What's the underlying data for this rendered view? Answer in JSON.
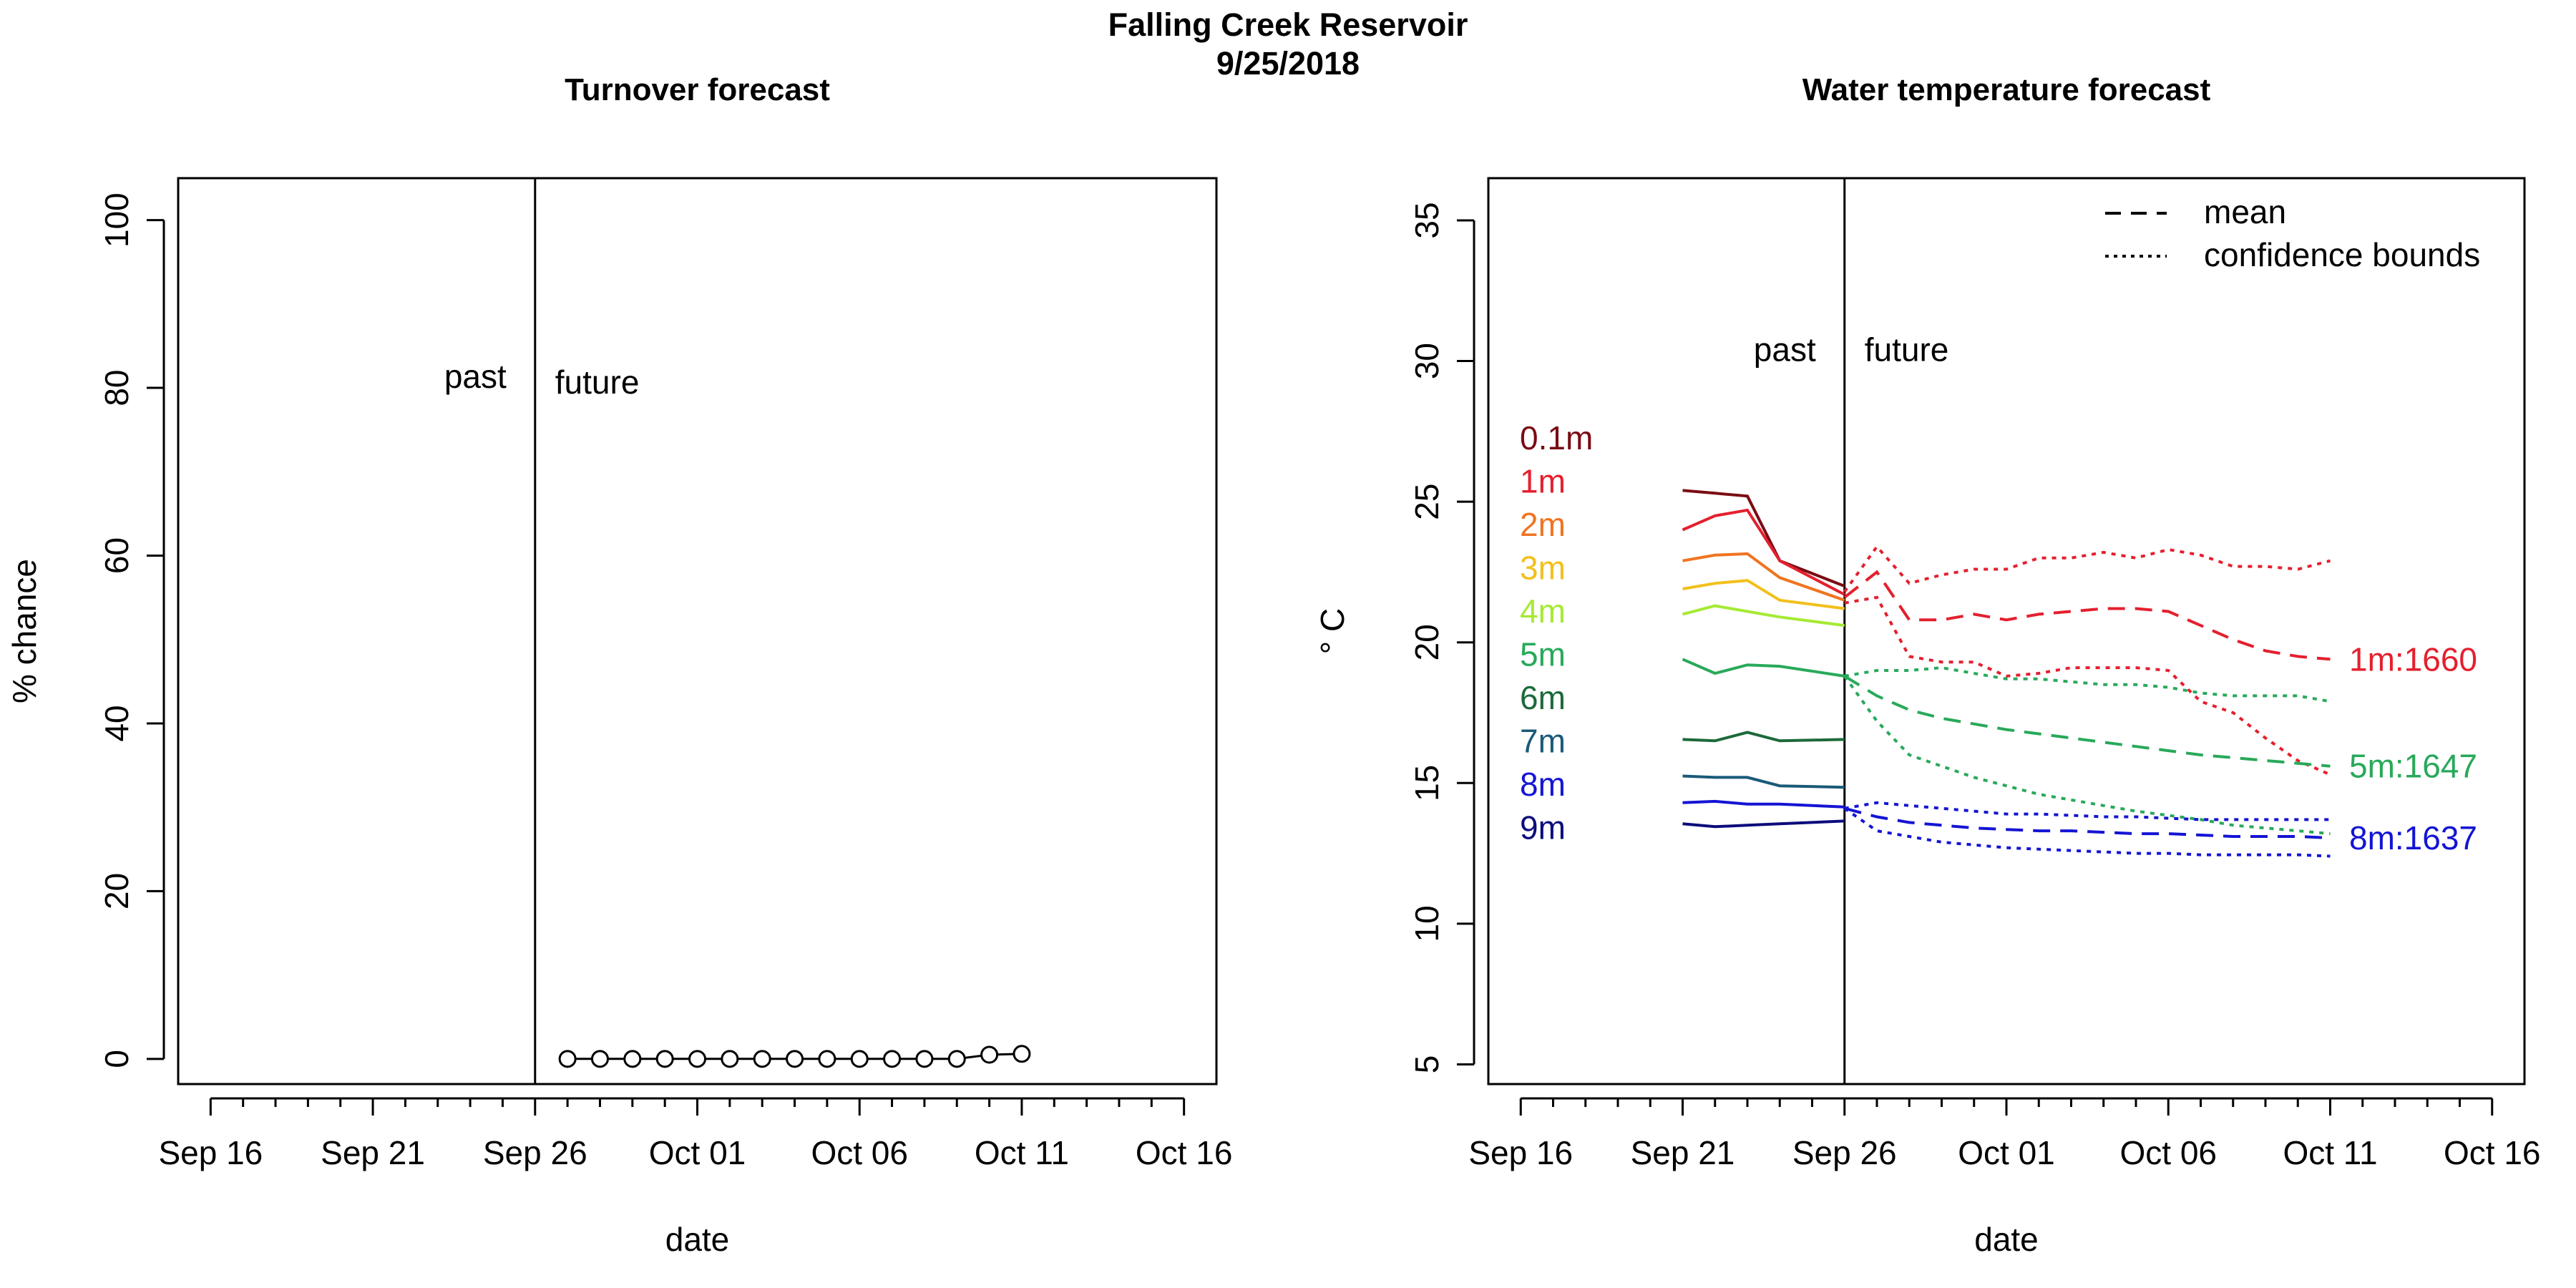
{
  "figure": {
    "title": "Falling Creek Reservoir",
    "subtitle": "9/25/2018"
  },
  "chart_data": [
    {
      "type": "line",
      "title": "Turnover forecast",
      "xlabel": "date",
      "ylabel": "% chance",
      "xlim": [
        "2018-09-15",
        "2018-10-17"
      ],
      "ylim": [
        -3,
        105
      ],
      "x_ticks": [
        "Sep 16",
        "Sep 21",
        "Sep 26",
        "Oct 01",
        "Oct 06",
        "Oct 11",
        "Oct 16"
      ],
      "y_ticks": [
        "0",
        "20",
        "40",
        "60",
        "80",
        "100"
      ],
      "divider_date": "2018-09-26",
      "annotations": {
        "past": "past",
        "future": "future"
      },
      "series": [
        {
          "x": [
            "2018-09-27",
            "2018-09-28",
            "2018-09-29",
            "2018-09-30",
            "2018-10-01",
            "2018-10-02",
            "2018-10-03",
            "2018-10-04",
            "2018-10-05",
            "2018-10-06",
            "2018-10-07",
            "2018-10-08",
            "2018-10-09",
            "2018-10-10",
            "2018-10-11"
          ],
          "y": [
            0,
            0,
            0,
            0,
            0,
            0,
            0,
            0,
            0,
            0,
            0,
            0,
            0,
            0.5,
            0.6
          ],
          "marker": "open-circle",
          "color": "#000000"
        }
      ]
    },
    {
      "type": "line",
      "title": "Water temperature forecast",
      "xlabel": "date",
      "ylabel": "° C",
      "xlim": [
        "2018-09-15",
        "2018-10-17"
      ],
      "ylim": [
        4.3,
        36.5
      ],
      "x_ticks": [
        "Sep 16",
        "Sep 21",
        "Sep 26",
        "Oct 01",
        "Oct 06",
        "Oct 11",
        "Oct 16"
      ],
      "y_ticks": [
        "5",
        "10",
        "15",
        "20",
        "25",
        "30",
        "35"
      ],
      "divider_date": "2018-09-26",
      "annotations": {
        "past": "past",
        "future": "future"
      },
      "legend": {
        "position": "top-right",
        "items": [
          {
            "label": "mean",
            "style": "dashed"
          },
          {
            "label": "confidence bounds",
            "style": "dotted"
          }
        ]
      },
      "observed_x": [
        "2018-09-21",
        "2018-09-22",
        "2018-09-23",
        "2018-09-24",
        "2018-09-26"
      ],
      "depths": [
        {
          "label": "0.1m",
          "color": "#7a0c14",
          "values": [
            25.4,
            25.3,
            25.2,
            22.9,
            22.0
          ]
        },
        {
          "label": "1m",
          "color": "#e4202e",
          "values": [
            24.0,
            24.5,
            24.7,
            22.9,
            21.7
          ]
        },
        {
          "label": "2m",
          "color": "#f07420",
          "values": [
            22.9,
            23.1,
            23.15,
            22.3,
            21.5
          ]
        },
        {
          "label": "3m",
          "color": "#f2c01c",
          "values": [
            21.9,
            22.1,
            22.2,
            21.5,
            21.2
          ]
        },
        {
          "label": "4m",
          "color": "#a6ea34",
          "values": [
            21.0,
            21.3,
            21.1,
            20.9,
            20.6
          ]
        },
        {
          "label": "5m",
          "color": "#28a95a",
          "values": [
            19.4,
            18.9,
            19.2,
            19.15,
            18.8
          ]
        },
        {
          "label": "6m",
          "color": "#1c6a3a",
          "values": [
            16.55,
            16.5,
            16.8,
            16.5,
            16.55
          ]
        },
        {
          "label": "7m",
          "color": "#1a5a78",
          "values": [
            15.25,
            15.2,
            15.2,
            14.9,
            14.85
          ]
        },
        {
          "label": "8m",
          "color": "#1414d4",
          "values": [
            14.3,
            14.35,
            14.25,
            14.25,
            14.15
          ]
        },
        {
          "label": "9m",
          "color": "#0c0c7c",
          "values": [
            13.55,
            13.45,
            13.5,
            13.55,
            13.65
          ]
        }
      ],
      "forecasts": [
        {
          "label": "1m:1660",
          "color": "#e4202e",
          "x": [
            "2018-09-26",
            "2018-09-27",
            "2018-09-28",
            "2018-09-29",
            "2018-09-30",
            "2018-10-01",
            "2018-10-02",
            "2018-10-03",
            "2018-10-04",
            "2018-10-05",
            "2018-10-06",
            "2018-10-07",
            "2018-10-08",
            "2018-10-09",
            "2018-10-10",
            "2018-10-11"
          ],
          "mean": [
            21.6,
            22.5,
            20.8,
            20.8,
            21.0,
            20.8,
            21.0,
            21.1,
            21.2,
            21.2,
            21.1,
            20.6,
            20.1,
            19.7,
            19.5,
            19.4
          ],
          "upper": [
            21.8,
            23.4,
            22.1,
            22.4,
            22.6,
            22.6,
            23.0,
            23.0,
            23.2,
            23.0,
            23.3,
            23.1,
            22.7,
            22.7,
            22.6,
            22.9
          ],
          "lower": [
            21.4,
            21.6,
            19.5,
            19.3,
            19.3,
            18.8,
            18.9,
            19.1,
            19.1,
            19.1,
            19.0,
            17.9,
            17.5,
            16.6,
            15.8,
            15.3
          ]
        },
        {
          "label": "5m:1647",
          "color": "#28a95a",
          "x": [
            "2018-09-26",
            "2018-09-27",
            "2018-09-28",
            "2018-09-29",
            "2018-09-30",
            "2018-10-01",
            "2018-10-02",
            "2018-10-03",
            "2018-10-04",
            "2018-10-05",
            "2018-10-06",
            "2018-10-07",
            "2018-10-08",
            "2018-10-09",
            "2018-10-10",
            "2018-10-11"
          ],
          "mean": [
            18.8,
            18.1,
            17.6,
            17.3,
            17.1,
            16.9,
            16.75,
            16.6,
            16.45,
            16.3,
            16.15,
            16.0,
            15.9,
            15.8,
            15.7,
            15.6
          ],
          "upper": [
            18.8,
            19.0,
            19.0,
            19.1,
            18.9,
            18.7,
            18.7,
            18.6,
            18.5,
            18.5,
            18.4,
            18.2,
            18.1,
            18.1,
            18.1,
            17.9
          ],
          "lower": [
            18.8,
            17.2,
            16.0,
            15.6,
            15.2,
            14.9,
            14.6,
            14.4,
            14.2,
            14.0,
            13.85,
            13.7,
            13.5,
            13.4,
            13.3,
            13.2
          ]
        },
        {
          "label": "8m:1637",
          "color": "#1414d4",
          "x": [
            "2018-09-26",
            "2018-09-27",
            "2018-09-28",
            "2018-09-29",
            "2018-09-30",
            "2018-10-01",
            "2018-10-02",
            "2018-10-03",
            "2018-10-04",
            "2018-10-05",
            "2018-10-06",
            "2018-10-07",
            "2018-10-08",
            "2018-10-09",
            "2018-10-10",
            "2018-10-11"
          ],
          "mean": [
            14.1,
            13.8,
            13.6,
            13.5,
            13.4,
            13.35,
            13.3,
            13.3,
            13.25,
            13.2,
            13.2,
            13.15,
            13.1,
            13.1,
            13.1,
            13.05
          ],
          "upper": [
            14.1,
            14.3,
            14.2,
            14.1,
            14.0,
            13.9,
            13.9,
            13.85,
            13.8,
            13.8,
            13.75,
            13.7,
            13.7,
            13.7,
            13.7,
            13.7
          ],
          "lower": [
            14.1,
            13.3,
            13.1,
            12.9,
            12.8,
            12.7,
            12.65,
            12.6,
            12.55,
            12.5,
            12.5,
            12.45,
            12.45,
            12.45,
            12.45,
            12.4
          ]
        }
      ]
    }
  ]
}
